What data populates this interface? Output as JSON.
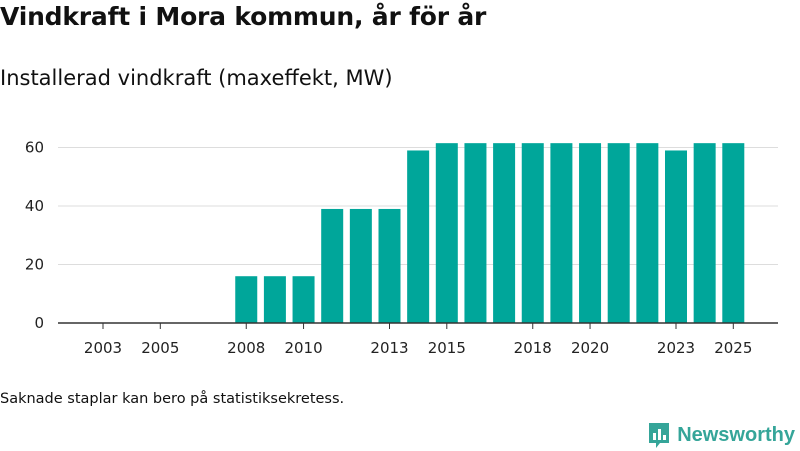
{
  "header": {
    "title": "Vindkraft i Mora kommun, år för år",
    "subtitle": "Installerad vindkraft (maxeffekt, MW)"
  },
  "footnote": "Saknade staplar kan bero på statistiksekretess.",
  "brand": {
    "name": "Newsworthy",
    "color": "#35a599"
  },
  "colors": {
    "bar": "#00a69a",
    "grid": "#dddddd",
    "axis": "#333333"
  },
  "chart_data": {
    "type": "bar",
    "title": "Installerad vindkraft (maxeffekt, MW)",
    "xlabel": "",
    "ylabel": "",
    "ylim": [
      0,
      66
    ],
    "yticks": [
      0,
      20,
      40,
      60
    ],
    "xlim": [
      2002,
      2026
    ],
    "x_tick_labels": [
      "2003",
      "2005",
      "2008",
      "2010",
      "2013",
      "2015",
      "2018",
      "2020",
      "2023",
      "2025"
    ],
    "grid": true,
    "categories": [
      "2003",
      "2004",
      "2005",
      "2006",
      "2007",
      "2008",
      "2009",
      "2010",
      "2011",
      "2012",
      "2013",
      "2014",
      "2015",
      "2016",
      "2017",
      "2018",
      "2019",
      "2020",
      "2021",
      "2022",
      "2023",
      "2024",
      "2025"
    ],
    "values": [
      null,
      null,
      null,
      null,
      null,
      16,
      16,
      16,
      39,
      39,
      39,
      59,
      61.5,
      61.5,
      61.5,
      61.5,
      61.5,
      61.5,
      61.5,
      61.5,
      59,
      61.5,
      61.5
    ]
  }
}
